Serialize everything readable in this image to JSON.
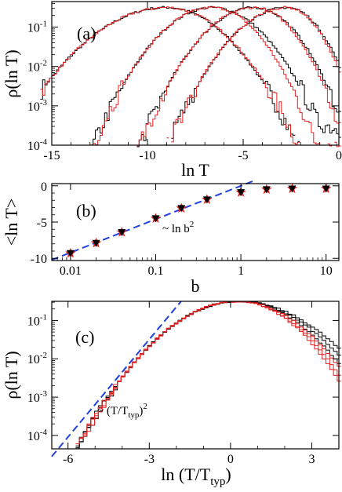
{
  "chart_data": [
    {
      "panel": "(a)",
      "type": "line",
      "xlabel": "ln T",
      "ylabel": "ρ(ln T)",
      "xlim": [
        -15,
        0
      ],
      "ylim_log10": [
        -4,
        -0.35
      ],
      "xticks": [
        {
          "v": -15,
          "label": "-15"
        },
        {
          "v": -10,
          "label": "-10"
        },
        {
          "v": -5,
          "label": "-5"
        },
        {
          "v": 0,
          "label": "0"
        }
      ],
      "yticks": [
        {
          "v": -4,
          "label": "10",
          "exp": "-4"
        },
        {
          "v": -3,
          "label": "10",
          "exp": "-3"
        },
        {
          "v": -2,
          "label": "10",
          "exp": "-2"
        },
        {
          "v": -1,
          "label": "10",
          "exp": "-1"
        }
      ],
      "histograms": [
        {
          "color": "#000000",
          "peak_x": -9.0,
          "left_sigma": 2.1,
          "right_sigma": 1.7,
          "tail_start": 99,
          "tail_log10": -9
        },
        {
          "color": "#e82020",
          "peak_x": -9.0,
          "left_sigma": 2.1,
          "right_sigma": 1.72,
          "tail_start": 99,
          "tail_log10": -9
        },
        {
          "color": "#000000",
          "peak_x": -6.6,
          "left_sigma": 1.55,
          "right_sigma": 1.5,
          "tail_start": -4.2,
          "tail_log10": -2.9,
          "tail_end_log10": -3.6
        },
        {
          "color": "#e82020",
          "peak_x": -6.6,
          "left_sigma": 1.55,
          "right_sigma": 1.35,
          "tail_start": -4.6,
          "tail_log10": -3.6,
          "tail_end_log10": -4.0
        },
        {
          "color": "#000000",
          "peak_x": -4.4,
          "left_sigma": 1.5,
          "right_sigma": 1.25,
          "tail_start": -2.9,
          "tail_log10": -2.2,
          "tail_end_log10": -3.3
        },
        {
          "color": "#e82020",
          "peak_x": -4.4,
          "left_sigma": 1.5,
          "right_sigma": 1.2,
          "tail_start": -3.0,
          "tail_log10": -2.8,
          "tail_end_log10": -3.9
        },
        {
          "color": "#000000",
          "peak_x": -2.7,
          "left_sigma": 1.55,
          "right_sigma": 1.05,
          "tail_start": -1.4,
          "tail_log10": -1.4,
          "tail_end_log10": -2.2
        },
        {
          "color": "#e82020",
          "peak_x": -2.7,
          "left_sigma": 1.55,
          "right_sigma": 1.0,
          "tail_start": -1.5,
          "tail_log10": -1.7,
          "tail_end_log10": -2.7
        }
      ]
    },
    {
      "panel": "(b)",
      "type": "scatter",
      "xlabel": "b",
      "ylabel": "<ln T>",
      "xlim_log10": [
        -2.22,
        1.15
      ],
      "ylim": [
        -10.3,
        0.3
      ],
      "xticks": [
        {
          "v": 0.01,
          "label": "0.01"
        },
        {
          "v": 0.1,
          "label": "0.1"
        },
        {
          "v": 1,
          "label": "1"
        },
        {
          "v": 10,
          "label": "10"
        }
      ],
      "yticks": [
        {
          "v": -10,
          "label": "-10"
        },
        {
          "v": -5,
          "label": "-5"
        },
        {
          "v": 0,
          "label": "0"
        }
      ],
      "annotation": {
        "text": "~ ln b",
        "sup": "2"
      },
      "series": [
        {
          "marker": "triangle-down",
          "color": "#000000",
          "x": [
            0.01,
            0.02,
            0.04,
            0.1,
            0.2,
            0.4,
            1,
            2,
            4,
            10
          ],
          "y": [
            -9.3,
            -7.9,
            -6.4,
            -4.5,
            -3.1,
            -1.9,
            -0.9,
            -0.5,
            -0.4,
            -0.4
          ]
        },
        {
          "marker": "star",
          "color": "#e82020",
          "x": [
            0.01,
            0.02,
            0.04,
            0.1,
            0.2,
            0.4,
            1,
            2,
            4,
            10
          ],
          "y": [
            -9.3,
            -7.9,
            -6.4,
            -4.5,
            -3.1,
            -1.9,
            -0.9,
            -0.5,
            -0.4,
            -0.4
          ]
        },
        {
          "line": "dashed",
          "color": "#2040e0",
          "fn": "2*ln(b)",
          "x": [
            0.006,
            1.48
          ],
          "y": [
            -10.23,
            0.78
          ]
        }
      ]
    },
    {
      "panel": "(c)",
      "type": "line",
      "xlabel": "ln (T/T",
      "xlabel_sub": "typ",
      "xlabel_end": ")",
      "ylabel": "ρ(ln T)",
      "xlim": [
        -6.6,
        4.0
      ],
      "ylim_log10": [
        -4.35,
        -0.5
      ],
      "xticks": [
        {
          "v": -6,
          "label": "-6"
        },
        {
          "v": -3,
          "label": "-3"
        },
        {
          "v": 0,
          "label": "0"
        },
        {
          "v": 3,
          "label": "3"
        }
      ],
      "yticks": [
        {
          "v": -4,
          "label": "10",
          "exp": "-4"
        },
        {
          "v": -3,
          "label": "10",
          "exp": "-3"
        },
        {
          "v": -2,
          "label": "10",
          "exp": "-2"
        },
        {
          "v": -1,
          "label": "10",
          "exp": "-1"
        }
      ],
      "annotation": {
        "text": "~ (T/T",
        "sub": "typ",
        "end": ")",
        "sup": "2"
      },
      "asymptote": {
        "color": "#2040e0",
        "style": "dashed",
        "x": [
          -6.6,
          0.0
        ],
        "y_log10": [
          -4.55,
          1.05
        ]
      },
      "histograms": [
        {
          "color": "#000000",
          "right_sigma": 1.55
        },
        {
          "color": "#000000",
          "right_sigma": 1.45
        },
        {
          "color": "#000000",
          "right_sigma": 1.35
        },
        {
          "color": "#e82020",
          "right_sigma": 1.32
        },
        {
          "color": "#e82020",
          "right_sigma": 1.25
        },
        {
          "color": "#e82020",
          "right_sigma": 1.2
        }
      ]
    }
  ]
}
